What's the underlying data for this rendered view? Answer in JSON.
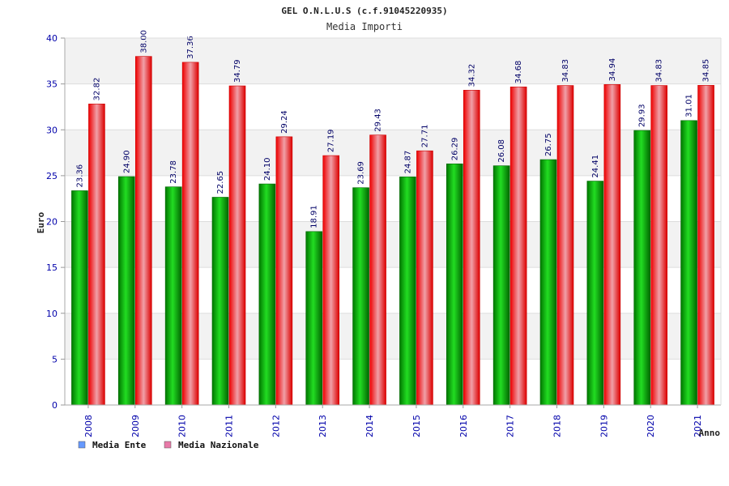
{
  "chart_data": {
    "type": "bar",
    "title": "GEL O.N.L.U.S (c.f.91045220935)",
    "subtitle": "Media Importi",
    "xlabel": "Anno",
    "ylabel": "Euro",
    "ylim": [
      0,
      40
    ],
    "yticks": [
      "0",
      "5",
      "10",
      "15",
      "20",
      "25",
      "30",
      "35",
      "40"
    ],
    "grid": true,
    "legend_position": "bottom-left",
    "categories": [
      "2008",
      "2009",
      "2010",
      "2011",
      "2012",
      "2013",
      "2014",
      "2015",
      "2016",
      "2017",
      "2018",
      "2019",
      "2020",
      "2021"
    ],
    "series": [
      {
        "name": "Media Ente",
        "color": "#00aa00",
        "legend_color": "#6699ff",
        "values": [
          23.36,
          24.9,
          23.78,
          22.65,
          24.1,
          18.91,
          23.69,
          24.87,
          26.29,
          26.08,
          26.75,
          24.41,
          29.93,
          31.01
        ],
        "labels": [
          "23.36",
          "24.90",
          "23.78",
          "22.65",
          "24.10",
          "18.91",
          "23.69",
          "24.87",
          "26.29",
          "26.08",
          "26.75",
          "24.41",
          "29.93",
          "31.01"
        ]
      },
      {
        "name": "Media Nazionale",
        "color": "#ee0000",
        "legend_color": "#e87aa8",
        "values": [
          32.82,
          38.0,
          37.36,
          34.79,
          29.24,
          27.19,
          29.43,
          27.71,
          34.32,
          34.68,
          34.83,
          34.94,
          34.83,
          34.85
        ],
        "labels": [
          "32.82",
          "38.00",
          "37.36",
          "34.79",
          "29.24",
          "27.19",
          "29.43",
          "27.71",
          "34.32",
          "34.68",
          "34.83",
          "34.94",
          "34.83",
          "34.85"
        ]
      }
    ]
  }
}
